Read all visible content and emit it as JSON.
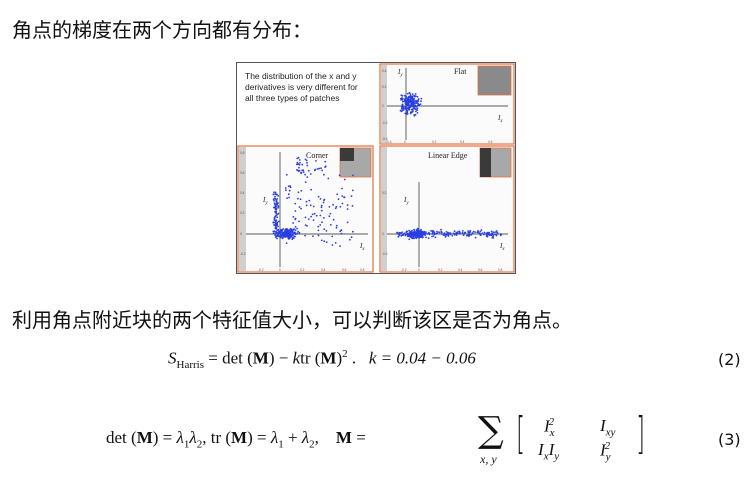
{
  "heading1": "角点的梯度在两个方向都有分布：",
  "heading2": "利用角点附近块的两个特征值大小，可以判断该区是否为角点。",
  "figure": {
    "caption_lines": [
      "The distribution of the x and y",
      "derivatives is very different for",
      "all three types of patches"
    ],
    "panels": [
      {
        "name": "Flat"
      },
      {
        "name": "Corner"
      },
      {
        "name": "Linear Edge"
      }
    ],
    "axis_x": "I",
    "axis_x_sub": "x",
    "axis_y": "I",
    "axis_y_sub": "y"
  },
  "eq2": {
    "number": "(2)",
    "k_range": "k = 0.04 − 0.06"
  },
  "eq3": {
    "number": "(3)"
  }
}
